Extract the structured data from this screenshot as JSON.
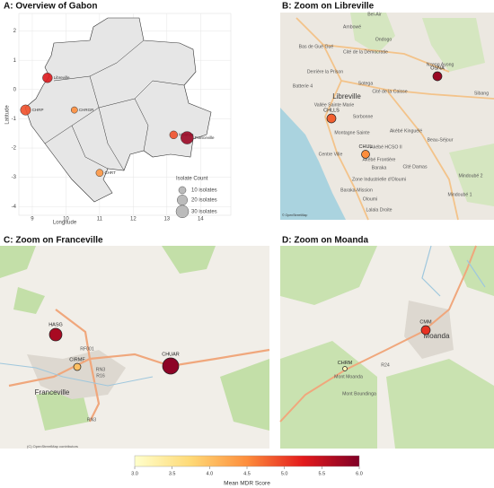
{
  "colorbar": {
    "title": "Mean MDR Score",
    "lim": [
      3,
      6
    ],
    "ticks": [
      {
        "value": 3,
        "label": "3.0"
      },
      {
        "value": 3.5,
        "label": "3.5"
      },
      {
        "value": 4,
        "label": "4.0"
      },
      {
        "value": 4.5,
        "label": "4.5"
      },
      {
        "value": 5,
        "label": "5.0"
      },
      {
        "value": 5.5,
        "label": "5.5"
      },
      {
        "value": 6,
        "label": "6.0"
      }
    ],
    "colors": [
      "#ffffcc",
      "#fed976",
      "#fd8d3c",
      "#e31a1c",
      "#800026"
    ]
  },
  "panel_a": {
    "title": "A: Overview of Gabon",
    "xlabel": "Longitude",
    "ylabel": "Latitude",
    "xlim": [
      8.6,
      14.9
    ],
    "ylim": [
      -4.3,
      2.6
    ],
    "xticks": [
      9,
      10,
      11,
      12,
      13,
      14
    ],
    "yticks": [
      -4,
      -3,
      -2,
      -1,
      0,
      1,
      2
    ],
    "points": [
      {
        "label": "Libreville",
        "lon": 9.45,
        "lat": 0.4,
        "count": 18,
        "mdr": 5.3
      },
      {
        "label": "CHRP",
        "lon": 8.8,
        "lat": -0.7,
        "count": 20,
        "mdr": 4.9
      },
      {
        "label": "CHRGR",
        "lon": 10.25,
        "lat": -0.7,
        "count": 8,
        "mdr": 4.5
      },
      {
        "label": "Moanda",
        "lon": 13.2,
        "lat": -1.55,
        "count": 12,
        "mdr": 4.9
      },
      {
        "label": "Franceville",
        "lon": 13.6,
        "lat": -1.65,
        "count": 30,
        "mdr": 5.8
      },
      {
        "label": "CHRT",
        "lon": 11.0,
        "lat": -2.85,
        "count": 10,
        "mdr": 4.4
      }
    ],
    "size_legend": {
      "title": "Isolate Count",
      "items": [
        {
          "value": 10,
          "label": "10 isolates"
        },
        {
          "value": 20,
          "label": "20 isolates"
        },
        {
          "value": 30,
          "label": "30 isolates"
        }
      ]
    }
  },
  "panel_b": {
    "title": "B: Zoom on Libreville",
    "places": [
      "Bel-Air",
      "Ambowé",
      "Ondogo",
      "Cité de la Démocratie",
      "Bas de Gué Gué",
      "Derrière la Prison",
      "Sotega",
      "Nzeng Ayong",
      "Batterie 4",
      "Cité de la Caisse",
      "Libreville",
      "Vallée Sainte Marie",
      "Sorbonne",
      "Akébé Kinguélé",
      "Montagne Sainte",
      "Akébé HCSO II",
      "Beau-Séjour",
      "Akébé Frontière",
      "Baraka",
      "Cité Damas",
      "Zone Industrielle d'Oloumi",
      "Baraka-Mission",
      "Oloumi",
      "Lalala Droite",
      "Mindoubé 1",
      "Mindoubé 2",
      "Sibang",
      "Centre Ville"
    ],
    "sites": [
      {
        "label": "OSNA",
        "mdr": 5.8
      },
      {
        "label": "CHLLS",
        "mdr": 4.8
      },
      {
        "label": "CHUL",
        "mdr": 4.5
      }
    ]
  },
  "panel_c": {
    "title": "C: Zoom on Franceville",
    "places": [
      "Franceville",
      "RF001",
      "RN3",
      "R16",
      "RN3",
      "(C) OpenStreetMap contributors"
    ],
    "sites": [
      {
        "label": "HASG",
        "mdr": 5.7
      },
      {
        "label": "CIRMF",
        "mdr": 4.0
      },
      {
        "label": "CHUAR",
        "mdr": 5.9
      }
    ]
  },
  "panel_d": {
    "title": "D: Zoom on Moanda",
    "places": [
      "Moanda",
      "Mont Moanda",
      "R24",
      "Mont Boundinga"
    ],
    "sites": [
      {
        "label": "CMM",
        "mdr": 5.1
      },
      {
        "label": "CHRM",
        "mdr": 3.2
      }
    ]
  }
}
